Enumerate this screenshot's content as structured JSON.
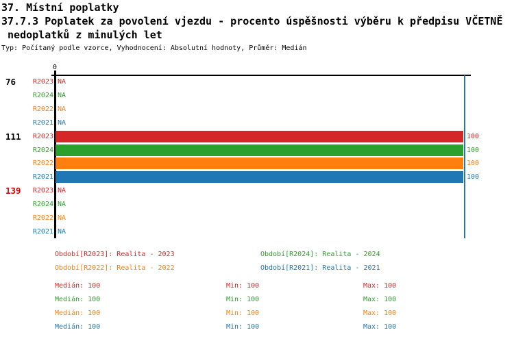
{
  "header": {
    "title": "37. Místní poplatky",
    "subtitle_line1": "37.7.3 Poplatek za povolení vjezdu - procento úspěšnosti výběru k předpisu VČETNĚ",
    "subtitle_line2": " nedoplatků z minulých let",
    "meta": "Typ: Počítaný podle vzorce, Vyhodnocení: Absolutní hodnoty, Průměr: Medián"
  },
  "colors": {
    "r2023": "#d62728",
    "r2024": "#2ca02c",
    "r2022": "#ff7f0e",
    "r2021": "#1f77b4",
    "group_highlight": "#e00000",
    "axis": "#000000",
    "gridline_100": "#1f77b4"
  },
  "chart_data": {
    "type": "bar",
    "orientation": "horizontal",
    "title": "37.7.3 Poplatek za povolení vjezdu - procento úspěšnosti výběru k předpisu VČETNĚ nedoplatků z minulých let",
    "xlabel": "",
    "ylabel": "",
    "xlim": [
      0,
      100
    ],
    "x_axis_tick_label": "0",
    "gridline_at": 100,
    "legend_position": "bottom",
    "series_order": [
      "R2023",
      "R2024",
      "R2022",
      "R2021"
    ],
    "groups": [
      {
        "label": "76",
        "highlighted": false,
        "rows": [
          {
            "series": "R2023",
            "value": "NA"
          },
          {
            "series": "R2024",
            "value": "NA"
          },
          {
            "series": "R2022",
            "value": "NA"
          },
          {
            "series": "R2021",
            "value": "NA"
          }
        ]
      },
      {
        "label": "111",
        "highlighted": false,
        "rows": [
          {
            "series": "R2023",
            "value": 100
          },
          {
            "series": "R2024",
            "value": 100
          },
          {
            "series": "R2022",
            "value": 100
          },
          {
            "series": "R2021",
            "value": 100
          }
        ]
      },
      {
        "label": "139",
        "highlighted": true,
        "rows": [
          {
            "series": "R2023",
            "value": "NA"
          },
          {
            "series": "R2024",
            "value": "NA"
          },
          {
            "series": "R2022",
            "value": "NA"
          },
          {
            "series": "R2021",
            "value": "NA"
          }
        ]
      }
    ]
  },
  "legend": {
    "items": [
      {
        "label": "Období[R2023]: Realita - 2023",
        "color": "#d62728"
      },
      {
        "label": "Období[R2024]: Realita - 2024",
        "color": "#2ca02c"
      },
      {
        "label": "Období[R2022]: Realita - 2022",
        "color": "#ff7f0e"
      },
      {
        "label": "Období[R2021]: Realita - 2021",
        "color": "#1f77b4"
      }
    ]
  },
  "stats": {
    "rows": [
      {
        "series": "R2023",
        "color": "#d62728",
        "median": "Medián: 100",
        "min": "Min: 100",
        "max": "Max: 100"
      },
      {
        "series": "R2024",
        "color": "#2ca02c",
        "median": "Medián: 100",
        "min": "Min: 100",
        "max": "Max: 100"
      },
      {
        "series": "R2022",
        "color": "#ff7f0e",
        "median": "Medián: 100",
        "min": "Min: 100",
        "max": "Max: 100"
      },
      {
        "series": "R2021",
        "color": "#1f77b4",
        "median": "Medián: 100",
        "min": "Min: 100",
        "max": "Max: 100"
      }
    ]
  }
}
